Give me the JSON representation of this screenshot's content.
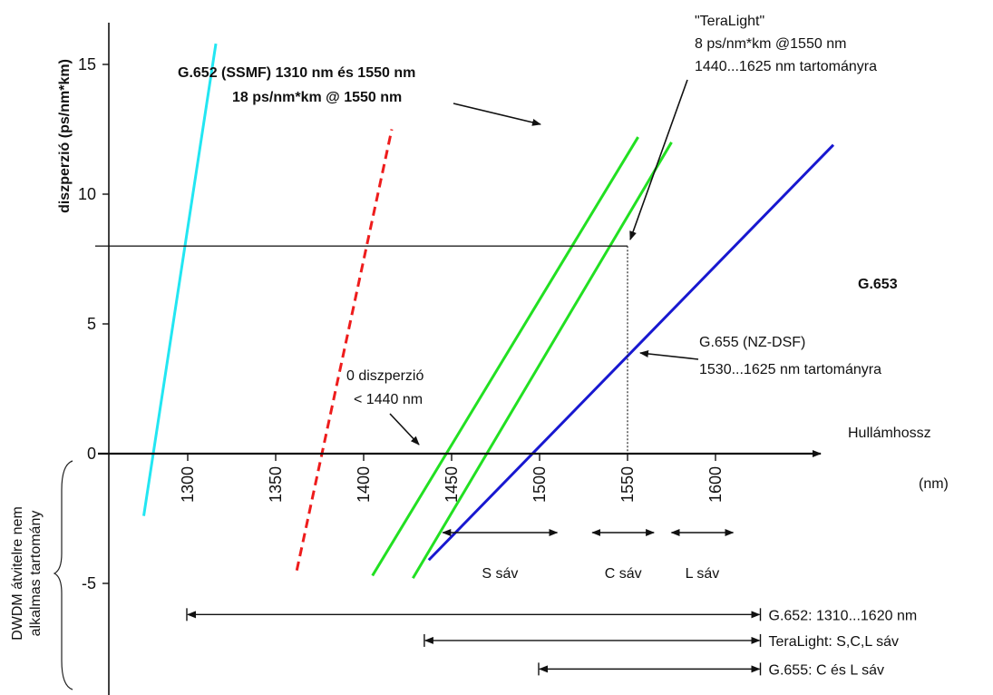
{
  "chart_data": {
    "type": "line",
    "ylabel": "diszperzió (ps/nm*km)",
    "xlabel_line1": "Hullámhossz",
    "xlabel_line2": "(nm)",
    "x_ticks": [
      1300,
      1350,
      1400,
      1450,
      1500,
      1550,
      1600
    ],
    "y_ticks": [
      -5,
      0,
      5,
      10,
      15
    ],
    "xlim": [
      1265,
      1660
    ],
    "ylim": [
      -8.5,
      16.8
    ],
    "grid": false,
    "colors": {
      "ssmf": "#22e6f2",
      "teralight": "#ee1c1c",
      "nzdsf": "#22e022",
      "dsf": "#1818d0",
      "guide": "#222222"
    },
    "series": [
      {
        "key": "g652",
        "style": "solid",
        "color": "ssmf",
        "x": [
          1275,
          1316
        ],
        "y": [
          -2.4,
          15.8
        ]
      },
      {
        "key": "teralight",
        "style": "dashed",
        "color": "teralight",
        "x": [
          1362,
          1416
        ],
        "y": [
          -4.5,
          12.5
        ]
      },
      {
        "key": "g655a",
        "style": "solid",
        "color": "nzdsf",
        "x": [
          1405,
          1556
        ],
        "y": [
          -4.7,
          12.2
        ]
      },
      {
        "key": "g655b",
        "style": "solid",
        "color": "nzdsf",
        "x": [
          1428,
          1575
        ],
        "y": [
          -4.8,
          12.0
        ]
      },
      {
        "key": "g653",
        "style": "solid",
        "color": "dsf",
        "x": [
          1437,
          1667
        ],
        "y": [
          -4.1,
          11.9
        ]
      }
    ],
    "reference": {
      "x": 1550,
      "y": 8
    },
    "annotations": {
      "g652_line1": "G.652 (SSMF)  1310 nm és 1550 nm",
      "g652_line2": "18 ps/nm*km @ 1550 nm",
      "teralight_line1": "\"TeraLight\"",
      "teralight_line2": "8 ps/nm*km @1550 nm",
      "teralight_line3": "1440...1625 nm tartományra",
      "g653": "G.653",
      "g655_line1": "G.655 (NZ-DSF)",
      "g655_line2": "1530...1625 nm tartományra",
      "zero_line1": "0 diszperzió",
      "zero_line2": "< 1440 nm",
      "dwdm_line1": "DWDM átvitelre nem",
      "dwdm_line2": "alkalmas tartomány"
    },
    "bands": [
      {
        "label": "S sáv",
        "from": 1445,
        "to": 1510
      },
      {
        "label": "C sáv",
        "from": 1530,
        "to": 1565
      },
      {
        "label": "L sáv",
        "from": 1575,
        "to": 1610
      }
    ],
    "ranges": [
      {
        "label": "G.652: 1310...1620 nm",
        "from": 1300,
        "to": 1625,
        "y": -6.2
      },
      {
        "label": "TeraLight: S,C,L sáv",
        "from": 1435,
        "to": 1625,
        "y": -7.2
      },
      {
        "label": "G.655: C és L sáv",
        "from": 1500,
        "to": 1625,
        "y": -8.3
      }
    ]
  }
}
